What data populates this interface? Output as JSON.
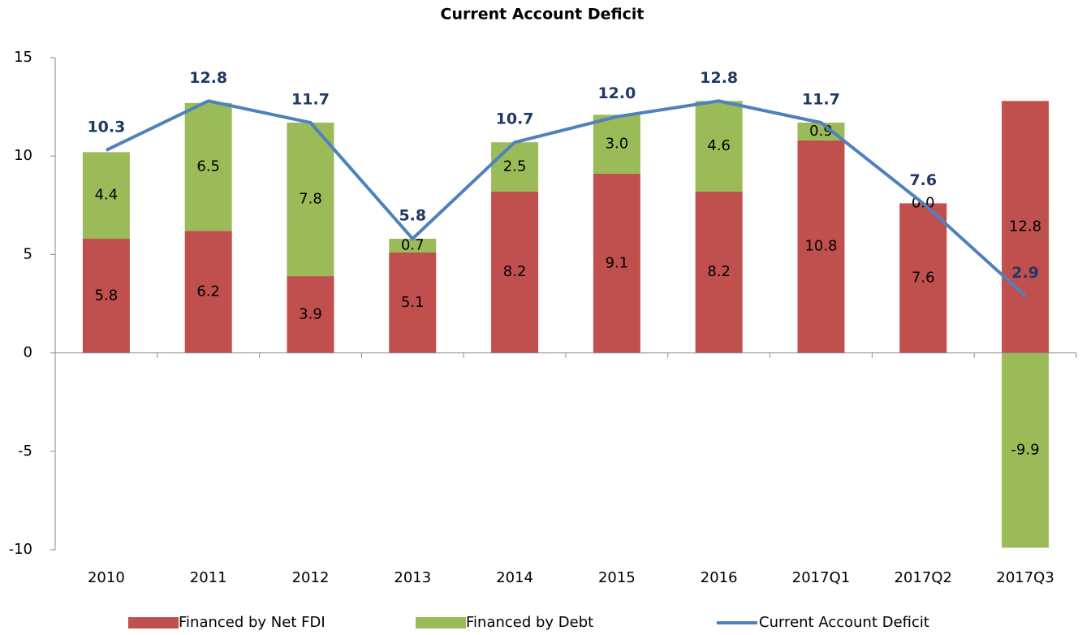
{
  "chart_data": {
    "type": "bar_line",
    "title": "Current Account Deficit",
    "categories": [
      "2010",
      "2011",
      "2012",
      "2013",
      "2014",
      "2015",
      "2016",
      "2017Q1",
      "2017Q2",
      "2017Q3"
    ],
    "series": [
      {
        "name": "Financed by Net FDI",
        "color": "#c0504d",
        "kind": "bar",
        "values": [
          5.8,
          6.2,
          3.9,
          5.1,
          8.2,
          9.1,
          8.2,
          10.8,
          7.6,
          12.8
        ],
        "value_labels": [
          "5.8",
          "6.2",
          "3.9",
          "5.1",
          "8.2",
          "9.1",
          "8.2",
          "10.8",
          "7.6",
          "12.8"
        ]
      },
      {
        "name": "Financed by Debt",
        "color": "#9bbb59",
        "kind": "bar",
        "values": [
          4.4,
          6.5,
          7.8,
          0.7,
          2.5,
          3.0,
          4.6,
          0.9,
          0.0,
          -9.9
        ],
        "value_labels": [
          "4.4",
          "6.5",
          "7.8",
          "0.7",
          "2.5",
          "3.0",
          "4.6",
          "0.9",
          "0.0",
          "-9.9"
        ]
      },
      {
        "name": "Current Account Deficit",
        "color": "#4f81bd",
        "kind": "line",
        "values": [
          10.3,
          12.8,
          11.7,
          5.8,
          10.7,
          12.0,
          12.8,
          11.7,
          7.6,
          2.9
        ],
        "value_labels": [
          "10.3",
          "12.8",
          "11.7",
          "5.8",
          "10.7",
          "12.0",
          "12.8",
          "11.7",
          "7.6",
          "2.9"
        ]
      }
    ],
    "ylim": [
      -10,
      15
    ],
    "yticks": [
      15,
      10,
      5,
      0,
      -5,
      -10
    ],
    "stacked": true,
    "legend": "bottom"
  }
}
